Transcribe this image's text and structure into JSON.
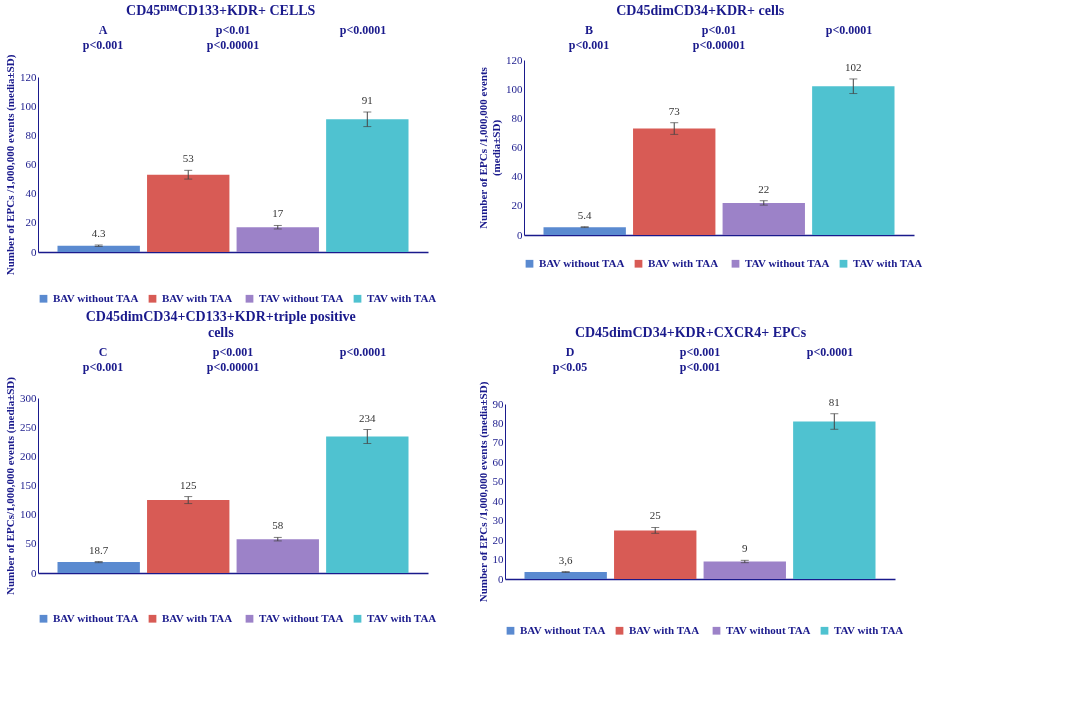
{
  "chart_data": [
    {
      "type": "bar",
      "title": "CD45ᴰᴵᴹCD133+KDR+ CELLS",
      "ylabel": "Number of EPCs /1,000,000 events (media±SD)",
      "categories": [
        null
      ],
      "series": [
        {
          "name": "BAV without TAA",
          "color": "#5a8ad0",
          "values": [
            4.3
          ],
          "errors": [
            0.5
          ],
          "value_labels": [
            "4.3"
          ]
        },
        {
          "name": "BAV with  TAA",
          "color": "#d85b55",
          "values": [
            53
          ],
          "errors": [
            3
          ],
          "value_labels": [
            "53"
          ]
        },
        {
          "name": "TAV without TAA",
          "color": "#9c82c8",
          "values": [
            17
          ],
          "errors": [
            1.2
          ],
          "value_labels": [
            "17"
          ]
        },
        {
          "name": "TAV with TAA",
          "color": "#4fc2d0",
          "values": [
            91
          ],
          "errors": [
            5
          ],
          "value_labels": [
            "91"
          ]
        }
      ],
      "ylim": [
        0,
        120
      ],
      "yticks": [
        0,
        20,
        40,
        60,
        80,
        100,
        120
      ],
      "legend": "bottom",
      "annotations": [
        "A",
        "p<0.01",
        "p<0.0001",
        "p<0.001",
        "p<0.00001"
      ]
    },
    {
      "type": "bar",
      "title": "CD45dimCD34+KDR+  cells",
      "ylabel": "Number  of EPCs  /1,000,000 events\n(media±SD)",
      "categories": [
        null
      ],
      "series": [
        {
          "name": "BAV without TAA",
          "color": "#5a8ad0",
          "values": [
            5.4
          ],
          "errors": [
            0.3
          ],
          "value_labels": [
            "5.4"
          ]
        },
        {
          "name": "BAV with  TAA",
          "color": "#d85b55",
          "values": [
            73
          ],
          "errors": [
            4
          ],
          "value_labels": [
            "73"
          ]
        },
        {
          "name": "TAV without TAA",
          "color": "#9c82c8",
          "values": [
            22
          ],
          "errors": [
            1.5
          ],
          "value_labels": [
            "22"
          ]
        },
        {
          "name": "TAV with TAA",
          "color": "#4fc2d0",
          "values": [
            102
          ],
          "errors": [
            5
          ],
          "value_labels": [
            "102"
          ]
        }
      ],
      "ylim": [
        0,
        120
      ],
      "yticks": [
        0,
        20,
        40,
        60,
        80,
        100,
        120
      ],
      "legend": "bottom",
      "annotations": [
        "B",
        "p<0.01",
        "p<0.0001",
        "p<0.001",
        "p<0.00001"
      ]
    },
    {
      "type": "bar",
      "title": "CD45dimCD34+CD133+KDR+triple positive\ncells",
      "ylabel": "Number of EPCs/1,000,000 events (media±SD)",
      "categories": [
        null
      ],
      "series": [
        {
          "name": "BAV without TAA",
          "color": "#5a8ad0",
          "values": [
            18.7
          ],
          "errors": [
            1
          ],
          "value_labels": [
            "18.7"
          ]
        },
        {
          "name": "BAV with  TAA",
          "color": "#d85b55",
          "values": [
            125
          ],
          "errors": [
            6
          ],
          "value_labels": [
            "125"
          ]
        },
        {
          "name": "TAV without TAA",
          "color": "#9c82c8",
          "values": [
            58
          ],
          "errors": [
            3
          ],
          "value_labels": [
            "58"
          ]
        },
        {
          "name": "TAV with TAA",
          "color": "#4fc2d0",
          "values": [
            234
          ],
          "errors": [
            12
          ],
          "value_labels": [
            "234"
          ]
        }
      ],
      "ylim": [
        0,
        300
      ],
      "yticks": [
        0,
        50,
        100,
        150,
        200,
        250,
        300
      ],
      "legend": "bottom",
      "annotations": [
        "C",
        "p<0.001",
        "p<0.0001",
        "p<0.001",
        "p<0.00001"
      ]
    },
    {
      "type": "bar",
      "title": "CD45dimCD34+KDR+CXCR4+  EPCs",
      "ylabel": "Number  of EPCs  /1,000,000 events  (media±SD)",
      "categories": [
        null
      ],
      "series": [
        {
          "name": "BAV without TAA",
          "color": "#5a8ad0",
          "values": [
            3.6
          ],
          "errors": [
            0.2
          ],
          "value_labels": [
            "3,6"
          ]
        },
        {
          "name": "BAV with  TAA",
          "color": "#d85b55",
          "values": [
            25
          ],
          "errors": [
            1.5
          ],
          "value_labels": [
            "25"
          ]
        },
        {
          "name": "TAV without TAA",
          "color": "#9c82c8",
          "values": [
            9
          ],
          "errors": [
            0.6
          ],
          "value_labels": [
            "9"
          ]
        },
        {
          "name": "TAV with TAA",
          "color": "#4fc2d0",
          "values": [
            81
          ],
          "errors": [
            4
          ],
          "value_labels": [
            "81"
          ]
        }
      ],
      "ylim": [
        0,
        90
      ],
      "yticks": [
        0,
        10,
        20,
        30,
        40,
        50,
        60,
        70,
        80,
        90
      ],
      "legend": "bottom",
      "annotations": [
        "D",
        "p<0.001",
        "p<0.0001",
        "p<0.05",
        "p<0.001"
      ]
    }
  ]
}
